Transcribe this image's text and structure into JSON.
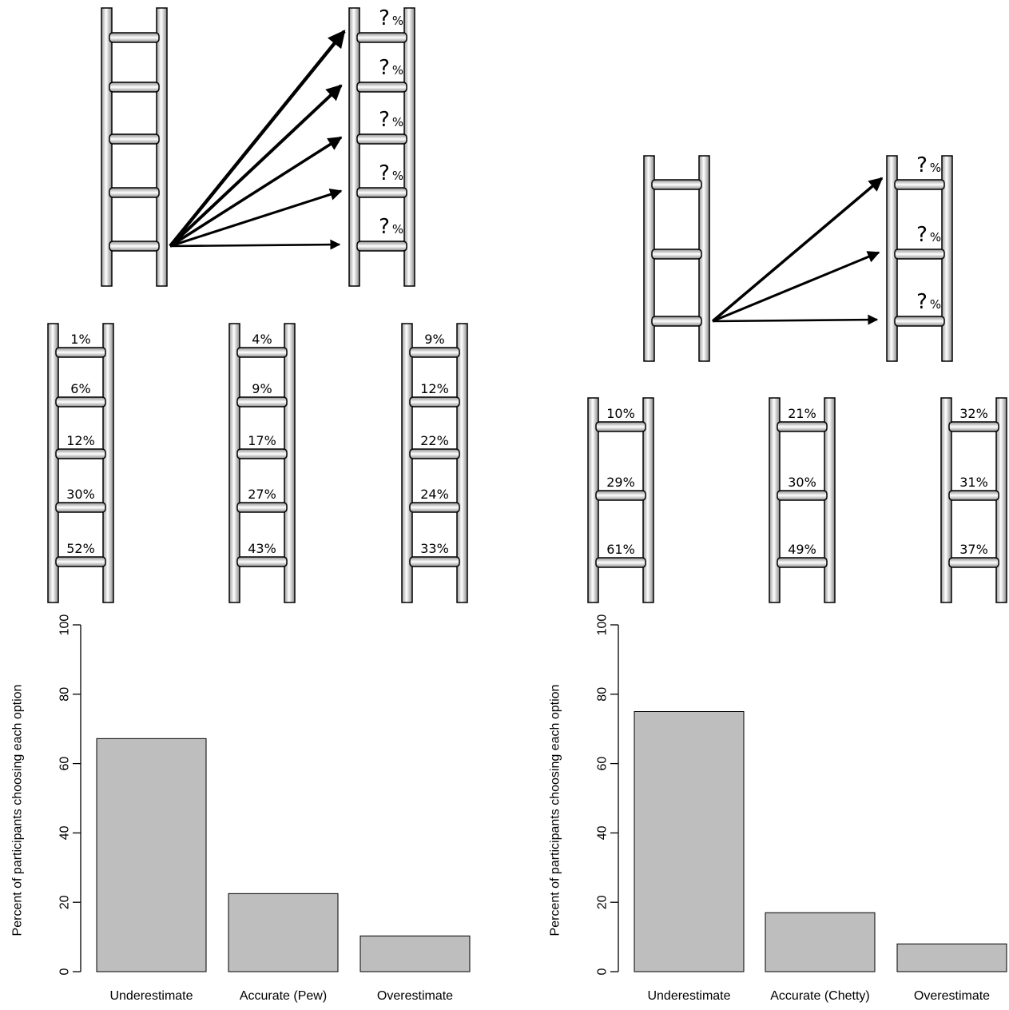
{
  "unknown_mark": "?",
  "percent_mark": "%",
  "panels": [
    {
      "top_ladder_rungs": 5,
      "ladders": [
        {
          "labels": [
            "1%",
            "6%",
            "12%",
            "30%",
            "52%"
          ]
        },
        {
          "labels": [
            "4%",
            "9%",
            "17%",
            "27%",
            "43%"
          ]
        },
        {
          "labels": [
            "9%",
            "12%",
            "22%",
            "24%",
            "33%"
          ]
        }
      ]
    },
    {
      "top_ladder_rungs": 3,
      "ladders": [
        {
          "labels": [
            "10%",
            "29%",
            "61%"
          ]
        },
        {
          "labels": [
            "21%",
            "30%",
            "49%"
          ]
        },
        {
          "labels": [
            "32%",
            "31%",
            "37%"
          ]
        }
      ]
    }
  ],
  "chart_data": [
    {
      "type": "bar",
      "categories": [
        "Underestimate",
        "Accurate (Pew)",
        "Overestimate"
      ],
      "values": [
        67.2,
        22.5,
        10.3
      ],
      "title": "",
      "xlabel": "",
      "ylabel": "Percent of participants choosing each option",
      "ylim": [
        0,
        100
      ],
      "yticks": [
        "0",
        "20",
        "40",
        "60",
        "80",
        "100"
      ],
      "bar_color": "#bebebe",
      "grid": false
    },
    {
      "type": "bar",
      "categories": [
        "Underestimate",
        "Accurate (Chetty)",
        "Overestimate"
      ],
      "values": [
        75,
        17,
        8
      ],
      "title": "",
      "xlabel": "",
      "ylabel": "Percent of participants choosing each option",
      "ylim": [
        0,
        100
      ],
      "yticks": [
        "0",
        "20",
        "40",
        "60",
        "80",
        "100"
      ],
      "bar_color": "#bebebe",
      "grid": false
    }
  ]
}
